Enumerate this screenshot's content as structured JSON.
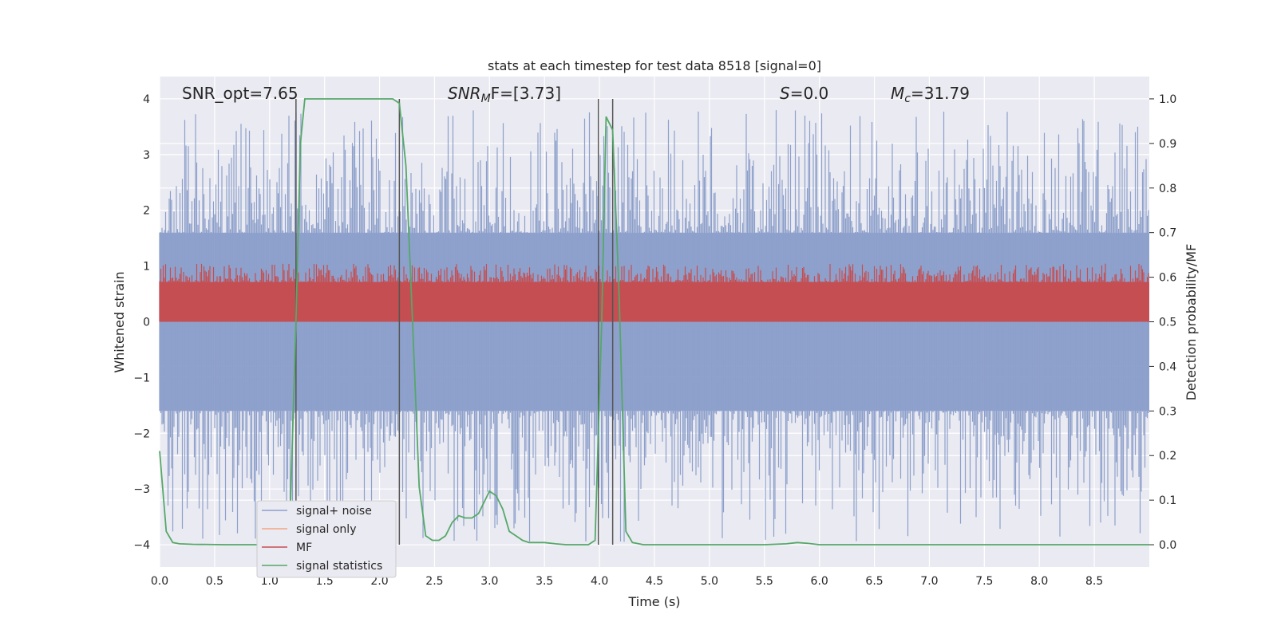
{
  "chart_data": {
    "type": "line",
    "title": "stats at each timestep for test data 8518 [signal=0]",
    "xlabel": "Time (s)",
    "ylabel_left": "Whitened strain",
    "ylabel_right": "Detection probability/MF",
    "xlim": [
      0,
      9.0
    ],
    "ylim_left": [
      -4.4,
      4.4
    ],
    "ylim_right": [
      -0.05,
      1.05
    ],
    "xticks": [
      0.0,
      0.5,
      1.0,
      1.5,
      2.0,
      2.5,
      3.0,
      3.5,
      4.0,
      4.5,
      5.0,
      5.5,
      6.0,
      6.5,
      7.0,
      7.5,
      8.0,
      8.5
    ],
    "xtick_labels": [
      "0.0",
      "0.5",
      "1.0",
      "1.5",
      "2.0",
      "2.5",
      "3.0",
      "3.5",
      "4.0",
      "4.5",
      "5.0",
      "5.5",
      "6.0",
      "6.5",
      "7.0",
      "7.5",
      "8.0",
      "8.5"
    ],
    "yticks_left": [
      -4,
      -3,
      -2,
      -1,
      0,
      1,
      2,
      3,
      4
    ],
    "ytick_labels_left": [
      "−4",
      "−3",
      "−2",
      "−1",
      "0",
      "1",
      "2",
      "3",
      "4"
    ],
    "yticks_right": [
      0.0,
      0.1,
      0.2,
      0.3,
      0.4,
      0.5,
      0.6,
      0.7,
      0.8,
      0.9,
      1.0
    ],
    "ytick_labels_right": [
      "0.0",
      "0.1",
      "0.2",
      "0.3",
      "0.4",
      "0.5",
      "0.6",
      "0.7",
      "0.8",
      "0.9",
      "1.0"
    ],
    "grid": true,
    "annotations": {
      "snr_opt": "SNR_opt=7.65",
      "snr_mf_main": "SNR",
      "snr_mf_sub": "M",
      "snr_mf_rest": "F=[3.73]",
      "s_main": "S",
      "s_rest": "=0.0",
      "mc_main": "M",
      "mc_sub": "c",
      "mc_rest": "=31.79"
    },
    "vertical_lines_x": [
      1.24,
      2.18,
      3.99,
      4.12
    ],
    "legend": {
      "placement": "lower-left",
      "entries": [
        {
          "label": "signal+ noise",
          "color": "#8da0cb"
        },
        {
          "label": "signal only",
          "color": "#f4a582"
        },
        {
          "label": "MF",
          "color": "#c44e52"
        },
        {
          "label": "signal statistics",
          "color": "#55a868"
        }
      ]
    },
    "series": [
      {
        "name": "signal+ noise",
        "axis": "left",
        "color": "#8da0cb",
        "description_band": {
          "typical_min": -1.6,
          "typical_max": 1.6,
          "peak_max": 3.8,
          "peak_min": -3.95
        }
      },
      {
        "name": "signal only",
        "axis": "left",
        "color": "#f4a582",
        "values": []
      },
      {
        "name": "MF",
        "axis": "right",
        "color": "#c44e52",
        "description_band": {
          "typical_min": 0.5,
          "typical_max": 0.6,
          "peak_max": 0.63
        }
      },
      {
        "name": "signal statistics",
        "axis": "right",
        "color": "#55a868",
        "x": [
          0.0,
          0.06,
          0.12,
          0.18,
          0.3,
          0.6,
          1.0,
          1.12,
          1.18,
          1.24,
          1.28,
          1.32,
          1.4,
          1.6,
          2.0,
          2.12,
          2.18,
          2.24,
          2.3,
          2.36,
          2.42,
          2.48,
          2.54,
          2.6,
          2.66,
          2.72,
          2.78,
          2.84,
          2.9,
          2.96,
          3.0,
          3.06,
          3.12,
          3.18,
          3.24,
          3.3,
          3.36,
          3.5,
          3.6,
          3.7,
          3.8,
          3.9,
          3.96,
          4.02,
          4.06,
          4.12,
          4.18,
          4.24,
          4.3,
          4.4,
          4.6,
          5.0,
          5.5,
          5.7,
          5.8,
          5.9,
          6.0,
          7.0,
          8.0,
          9.0
        ],
        "values": [
          0.21,
          0.03,
          0.005,
          0.002,
          0.001,
          0.0,
          0.0,
          0.0,
          0.01,
          0.5,
          0.9,
          1.0,
          1.0,
          1.0,
          1.0,
          1.0,
          0.99,
          0.85,
          0.5,
          0.13,
          0.02,
          0.01,
          0.01,
          0.02,
          0.05,
          0.065,
          0.06,
          0.06,
          0.07,
          0.1,
          0.12,
          0.11,
          0.08,
          0.03,
          0.02,
          0.01,
          0.005,
          0.005,
          0.002,
          0.0,
          0.0,
          0.0,
          0.01,
          0.5,
          0.96,
          0.93,
          0.55,
          0.03,
          0.005,
          0.0,
          0.0,
          0.0,
          0.0,
          0.002,
          0.005,
          0.003,
          0.0,
          0.0,
          0.0,
          0.0
        ]
      }
    ]
  }
}
